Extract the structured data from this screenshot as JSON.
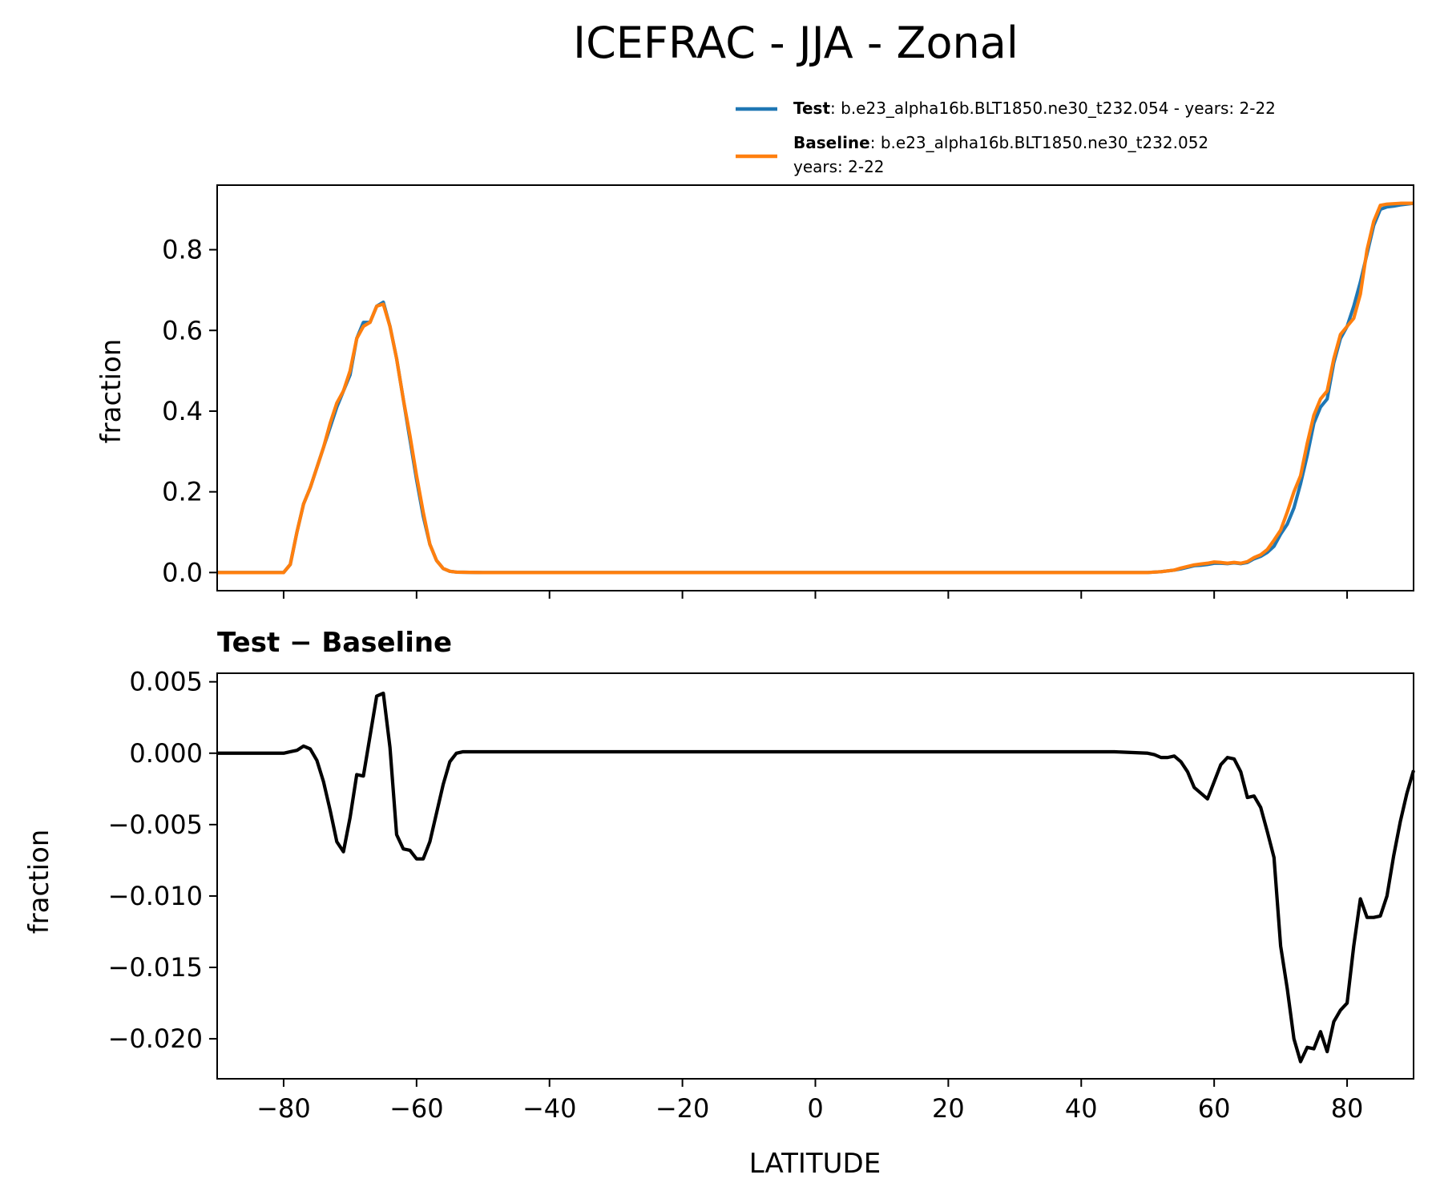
{
  "figure": {
    "title": "ICEFRAC - JJA - Zonal"
  },
  "legend": {
    "entries": [
      {
        "bold": "Test",
        "sep": ": ",
        "line1": "b.e23_alpha16b.BLT1850.ne30_t232.054 - years: 2-22",
        "line2": "",
        "color": "#1f77b4"
      },
      {
        "bold": "Baseline",
        "sep": ": ",
        "line1": "b.e23_alpha16b.BLT1850.ne30_t232.052",
        "line2": "years: 2-22",
        "color": "#ff7f0e"
      }
    ]
  },
  "chart_data": [
    {
      "type": "line",
      "ylabel": "fraction",
      "xlim": [
        -90,
        90
      ],
      "ylim": [
        -0.045,
        0.96
      ],
      "x_ticks": [
        -80,
        -60,
        -40,
        -20,
        0,
        20,
        40,
        60,
        80
      ],
      "y_ticks": [
        0.0,
        0.2,
        0.4,
        0.6,
        0.8
      ],
      "y_tick_labels": [
        "0.0",
        "0.2",
        "0.4",
        "0.6",
        "0.8"
      ],
      "x_tick_labels_visible": false,
      "series": [
        {
          "name": "Test",
          "color": "#1f77b4",
          "x": [
            -90,
            -80,
            -79,
            -78,
            -77,
            -76,
            -75,
            -74,
            -73,
            -72,
            -71,
            -70,
            -69,
            -68,
            -67,
            -66,
            -65,
            -64,
            -63,
            -62,
            -61,
            -60,
            -59,
            -58,
            -57,
            -56,
            -55,
            -54,
            -50,
            0,
            50,
            51,
            52,
            53,
            54,
            55,
            56,
            57,
            58,
            59,
            60,
            61,
            62,
            63,
            64,
            65,
            66,
            67,
            68,
            69,
            70,
            71,
            72,
            73,
            74,
            75,
            76,
            77,
            78,
            79,
            80,
            81,
            82,
            83,
            84,
            85,
            86,
            87,
            88,
            89,
            90
          ],
          "y": [
            0.0,
            0.0,
            0.02,
            0.1,
            0.17,
            0.21,
            0.26,
            0.31,
            0.36,
            0.41,
            0.45,
            0.49,
            0.58,
            0.62,
            0.62,
            0.66,
            0.67,
            0.61,
            0.53,
            0.43,
            0.33,
            0.23,
            0.14,
            0.07,
            0.03,
            0.01,
            0.003,
            0.001,
            0.0,
            0.0,
            0.0,
            0.001,
            0.002,
            0.004,
            0.006,
            0.009,
            0.013,
            0.017,
            0.018,
            0.02,
            0.023,
            0.023,
            0.022,
            0.024,
            0.022,
            0.025,
            0.034,
            0.04,
            0.05,
            0.065,
            0.095,
            0.12,
            0.16,
            0.22,
            0.29,
            0.37,
            0.41,
            0.43,
            0.52,
            0.58,
            0.61,
            0.66,
            0.72,
            0.79,
            0.86,
            0.9,
            0.906,
            0.908,
            0.911,
            0.913,
            0.915
          ]
        },
        {
          "name": "Baseline",
          "color": "#ff7f0e",
          "x": [
            -90,
            -80,
            -79,
            -78,
            -77,
            -76,
            -75,
            -74,
            -73,
            -72,
            -71,
            -70,
            -69,
            -68,
            -67,
            -66,
            -65,
            -64,
            -63,
            -62,
            -61,
            -60,
            -59,
            -58,
            -57,
            -56,
            -55,
            -54,
            -50,
            0,
            50,
            51,
            52,
            53,
            54,
            55,
            56,
            57,
            58,
            59,
            60,
            61,
            62,
            63,
            64,
            65,
            66,
            67,
            68,
            69,
            70,
            71,
            72,
            73,
            74,
            75,
            76,
            77,
            78,
            79,
            80,
            81,
            82,
            83,
            84,
            85,
            86,
            87,
            88,
            89,
            90
          ],
          "y": [
            0.0,
            0.0,
            0.02,
            0.1,
            0.17,
            0.21,
            0.26,
            0.31,
            0.37,
            0.42,
            0.45,
            0.5,
            0.58,
            0.61,
            0.62,
            0.66,
            0.665,
            0.61,
            0.53,
            0.43,
            0.34,
            0.24,
            0.15,
            0.07,
            0.03,
            0.01,
            0.003,
            0.001,
            0.0,
            0.0,
            0.0,
            0.001,
            0.002,
            0.004,
            0.006,
            0.011,
            0.015,
            0.019,
            0.021,
            0.023,
            0.026,
            0.025,
            0.023,
            0.025,
            0.023,
            0.027,
            0.037,
            0.044,
            0.057,
            0.08,
            0.105,
            0.15,
            0.2,
            0.24,
            0.32,
            0.39,
            0.43,
            0.45,
            0.53,
            0.59,
            0.61,
            0.63,
            0.69,
            0.8,
            0.87,
            0.91,
            0.913,
            0.914,
            0.915,
            0.915,
            0.915
          ]
        }
      ]
    },
    {
      "type": "line",
      "title": "Test − Baseline",
      "xlabel": "LATITUDE",
      "ylabel": "fraction",
      "xlim": [
        -90,
        90
      ],
      "ylim": [
        -0.0228,
        0.0056
      ],
      "x_ticks": [
        -80,
        -60,
        -40,
        -20,
        0,
        20,
        40,
        60,
        80
      ],
      "x_tick_labels": [
        "−80",
        "−60",
        "−40",
        "−20",
        "0",
        "20",
        "40",
        "60",
        "80"
      ],
      "y_ticks": [
        0.005,
        0.0,
        -0.005,
        -0.01,
        -0.015,
        -0.02
      ],
      "y_tick_labels": [
        "0.005",
        "0.000",
        "−0.005",
        "−0.010",
        "−0.015",
        "−0.020"
      ],
      "series": [
        {
          "color": "#000000",
          "x": [
            -90,
            -80,
            -79,
            -78,
            -77,
            -76,
            -75,
            -74,
            -73,
            -72,
            -71,
            -70,
            -69,
            -68,
            -67,
            -66,
            -65,
            -64,
            -63,
            -62,
            -61,
            -60,
            -59,
            -58,
            -57,
            -56,
            -55,
            -54,
            -53,
            0,
            45,
            50,
            51,
            52,
            53,
            54,
            55,
            56,
            57,
            58,
            59,
            60,
            61,
            62,
            63,
            64,
            65,
            66,
            67,
            68,
            69,
            70,
            71,
            72,
            73,
            74,
            75,
            76,
            77,
            78,
            79,
            80,
            81,
            82,
            83,
            84,
            85,
            86,
            87,
            88,
            89,
            90
          ],
          "y": [
            0.0,
            0.0,
            0.0001,
            0.0002,
            0.0005,
            0.0003,
            -0.0005,
            -0.002,
            -0.004,
            -0.0062,
            -0.0069,
            -0.0045,
            -0.0015,
            -0.0016,
            0.0012,
            0.004,
            0.0042,
            0.0004,
            -0.0057,
            -0.0067,
            -0.0068,
            -0.0074,
            -0.0074,
            -0.0062,
            -0.0042,
            -0.0022,
            -0.0006,
            0.0,
            0.0001,
            0.0001,
            0.0001,
            0.0,
            -0.0001,
            -0.0003,
            -0.0003,
            -0.0002,
            -0.0006,
            -0.0013,
            -0.0024,
            -0.0028,
            -0.0032,
            -0.002,
            -0.0008,
            -0.0003,
            -0.0004,
            -0.0013,
            -0.0031,
            -0.003,
            -0.0038,
            -0.0055,
            -0.0073,
            -0.0135,
            -0.0165,
            -0.02,
            -0.0216,
            -0.0206,
            -0.0207,
            -0.0195,
            -0.0209,
            -0.0188,
            -0.018,
            -0.0175,
            -0.0135,
            -0.0102,
            -0.0115,
            -0.0115,
            -0.0114,
            -0.01,
            -0.0072,
            -0.0048,
            -0.0028,
            -0.0012
          ]
        }
      ]
    }
  ]
}
